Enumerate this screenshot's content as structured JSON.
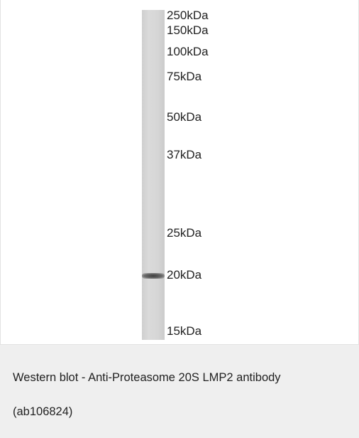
{
  "figure": {
    "markers": [
      "250kDa",
      "150kDa",
      "100kDa",
      "75kDa",
      "50kDa",
      "37kDa",
      "25kDa",
      "20kDa",
      "15kDa"
    ]
  },
  "caption": "Western blot - Anti-Proteasome 20S LMP2 antibody (ab106824)"
}
